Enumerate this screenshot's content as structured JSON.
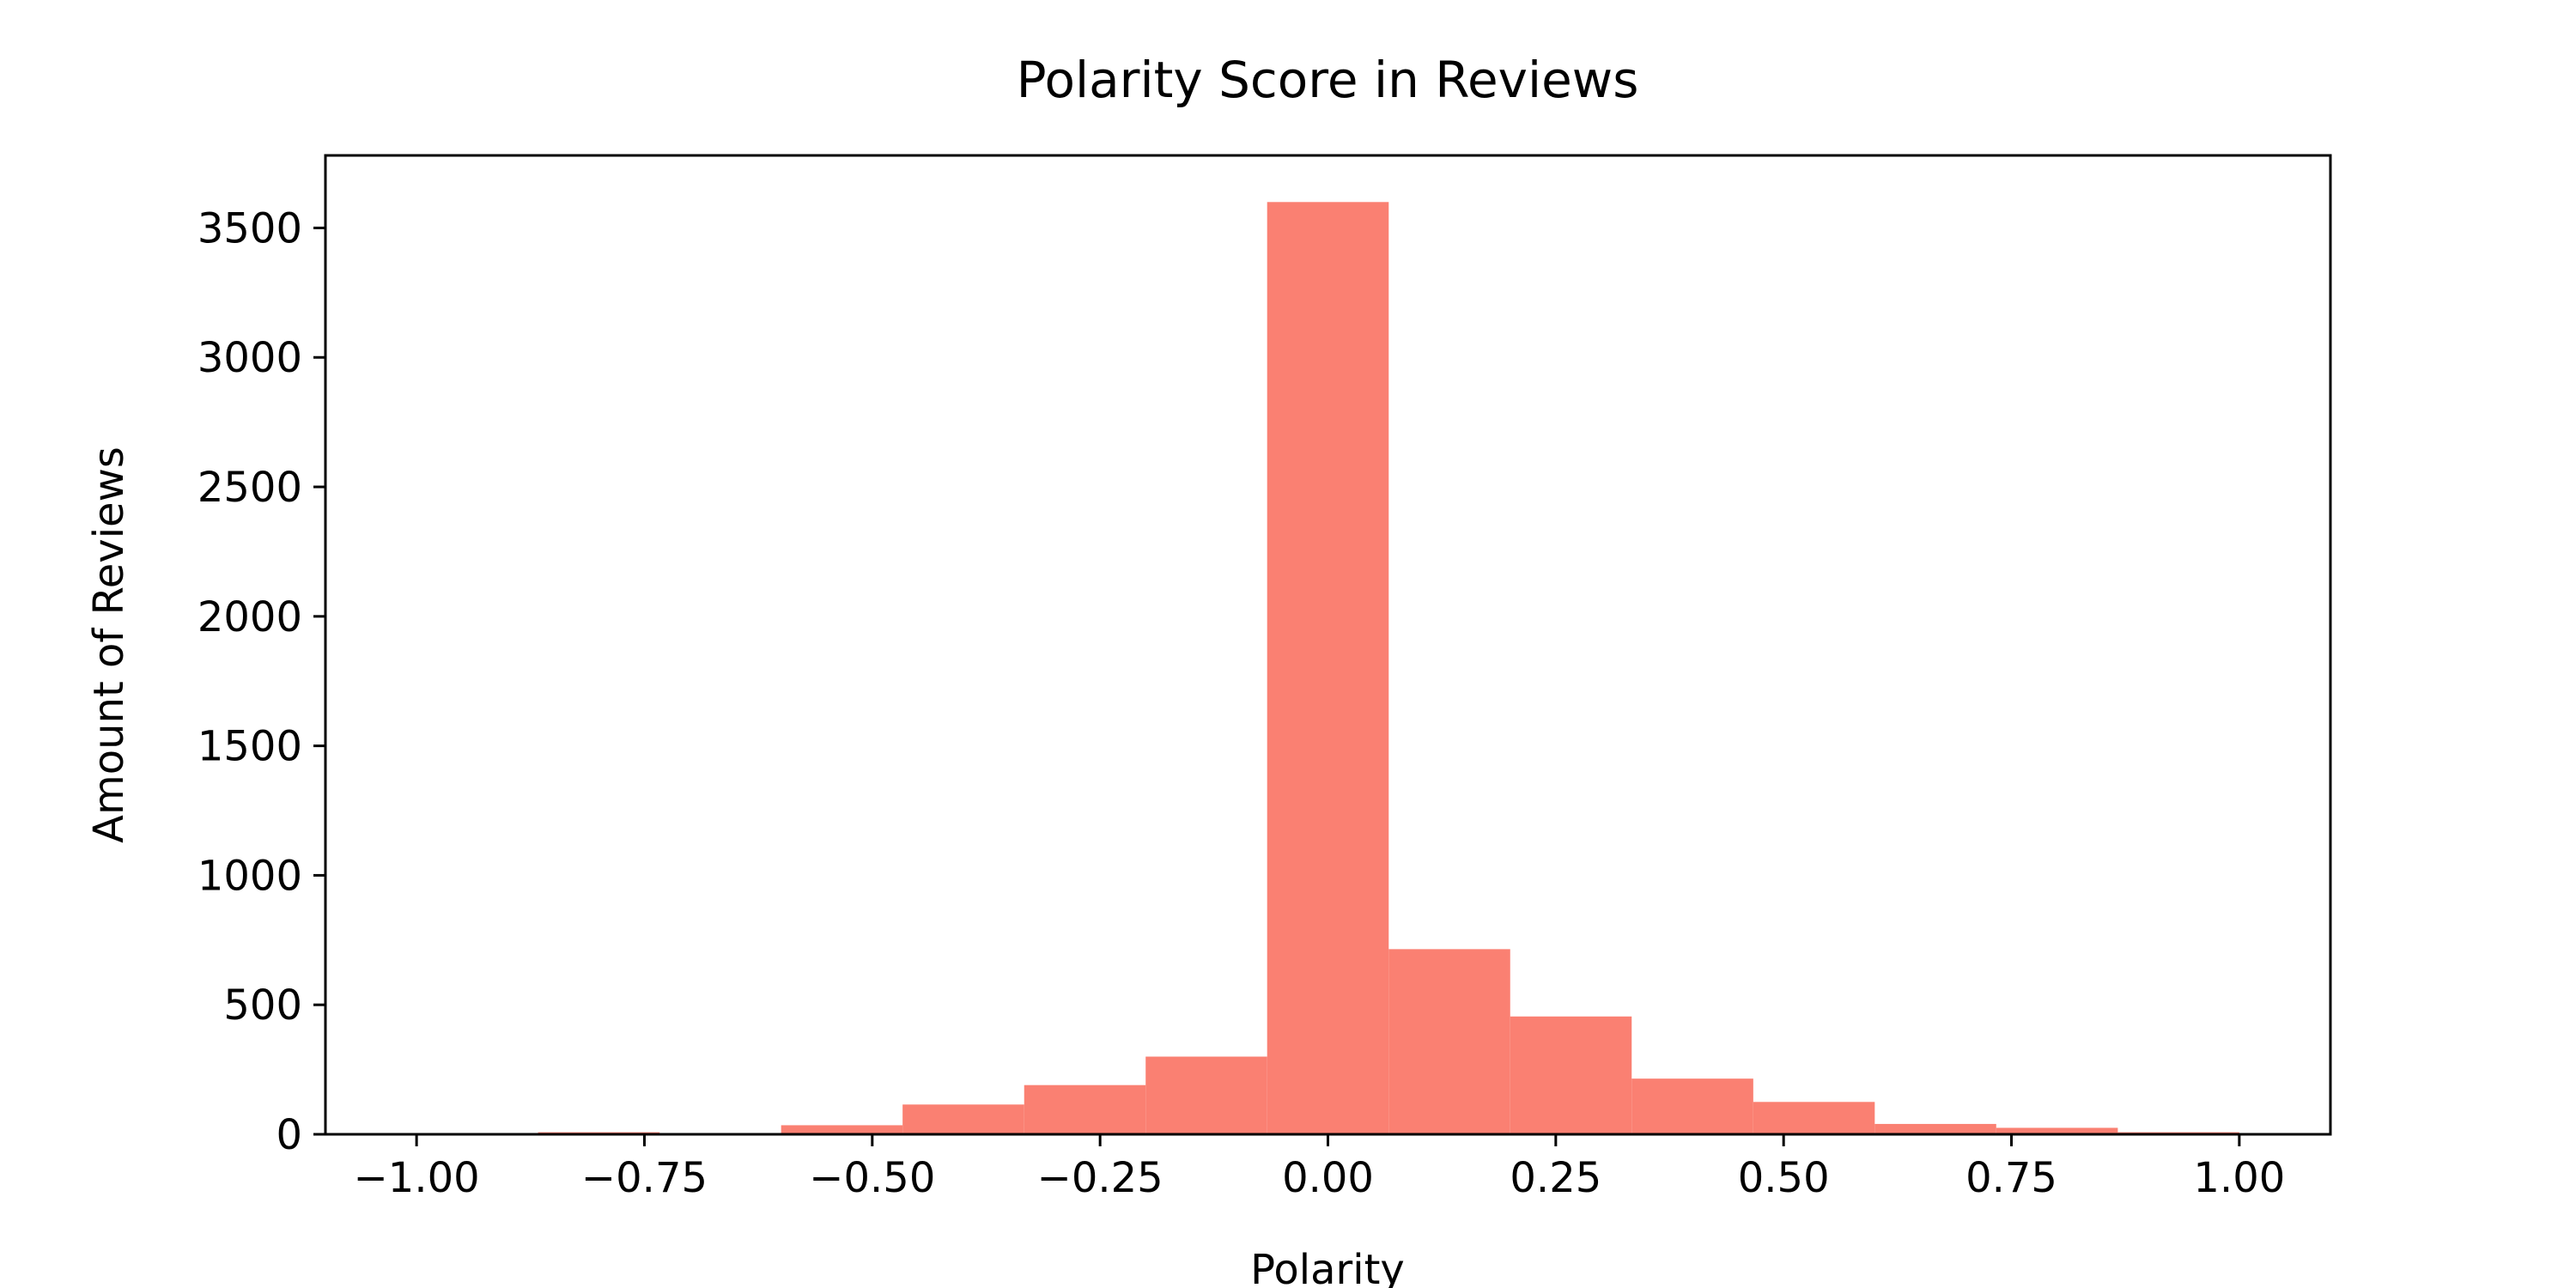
{
  "chart_data": {
    "type": "bar",
    "title": "Polarity Score in Reviews",
    "xlabel": "Polarity",
    "ylabel": "Amount of Reviews",
    "bar_color": "#fa8072",
    "bins": [
      {
        "start": -1.0,
        "end": -0.8667,
        "count": 2
      },
      {
        "start": -0.8667,
        "end": -0.7333,
        "count": 8
      },
      {
        "start": -0.7333,
        "end": -0.6,
        "count": 4
      },
      {
        "start": -0.6,
        "end": -0.4667,
        "count": 35
      },
      {
        "start": -0.4667,
        "end": -0.3333,
        "count": 115
      },
      {
        "start": -0.3333,
        "end": -0.2,
        "count": 190
      },
      {
        "start": -0.2,
        "end": -0.0667,
        "count": 300
      },
      {
        "start": -0.0667,
        "end": 0.0667,
        "count": 3600
      },
      {
        "start": 0.0667,
        "end": 0.2,
        "count": 715
      },
      {
        "start": 0.2,
        "end": 0.3333,
        "count": 455
      },
      {
        "start": 0.3333,
        "end": 0.4667,
        "count": 215
      },
      {
        "start": 0.4667,
        "end": 0.6,
        "count": 125
      },
      {
        "start": 0.6,
        "end": 0.7333,
        "count": 40
      },
      {
        "start": 0.7333,
        "end": 0.8667,
        "count": 25
      },
      {
        "start": 0.8667,
        "end": 1.0,
        "count": 8
      }
    ],
    "xlim": [
      -1.1,
      1.1
    ],
    "ylim": [
      0,
      3780
    ],
    "x_ticks": [
      {
        "value": -1.0,
        "label": "−1.00"
      },
      {
        "value": -0.75,
        "label": "−0.75"
      },
      {
        "value": -0.5,
        "label": "−0.50"
      },
      {
        "value": -0.25,
        "label": "−0.25"
      },
      {
        "value": 0.0,
        "label": "0.00"
      },
      {
        "value": 0.25,
        "label": "0.25"
      },
      {
        "value": 0.5,
        "label": "0.50"
      },
      {
        "value": 0.75,
        "label": "0.75"
      },
      {
        "value": 1.0,
        "label": "1.00"
      }
    ],
    "y_ticks": [
      {
        "value": 0,
        "label": "0"
      },
      {
        "value": 500,
        "label": "500"
      },
      {
        "value": 1000,
        "label": "1000"
      },
      {
        "value": 1500,
        "label": "1500"
      },
      {
        "value": 2000,
        "label": "2000"
      },
      {
        "value": 2500,
        "label": "2500"
      },
      {
        "value": 3000,
        "label": "3000"
      },
      {
        "value": 3500,
        "label": "3500"
      }
    ],
    "grid": false,
    "legend": "none"
  }
}
